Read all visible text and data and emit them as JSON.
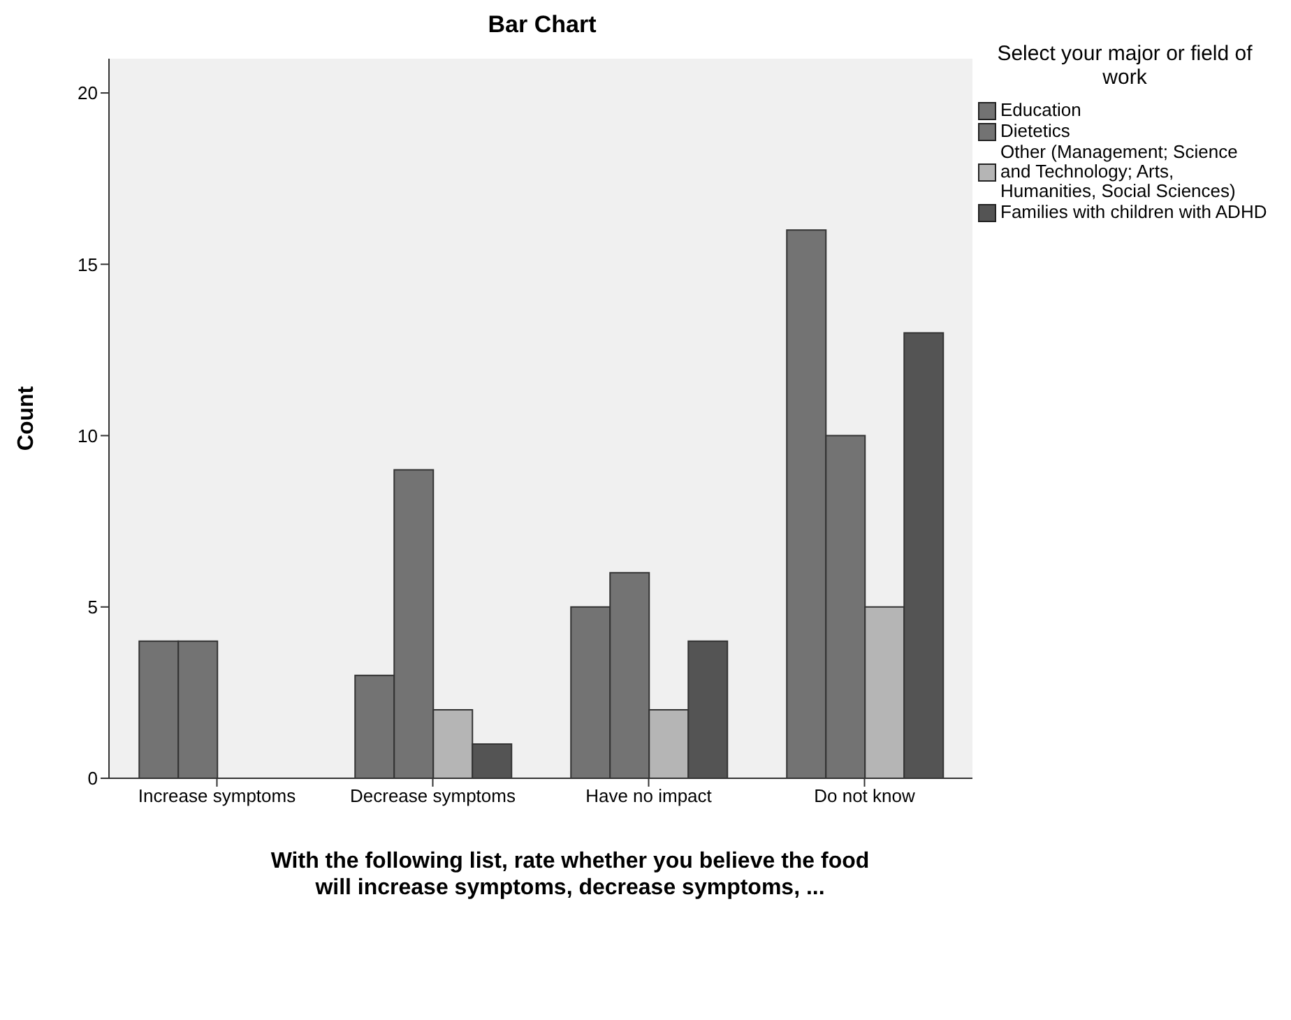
{
  "chart_data": {
    "type": "bar",
    "title": "Bar Chart",
    "xlabel": "With the following list, rate whether you believe the food will increase symptoms, decrease symptoms, ...",
    "ylabel": "Count",
    "legend_title": "Select your major or field of work",
    "categories": [
      "Increase symptoms",
      "Decrease symptoms",
      "Have no impact",
      "Do not know"
    ],
    "series": [
      {
        "name": "Education",
        "color": "#737373",
        "values": [
          4,
          3,
          5,
          16
        ]
      },
      {
        "name": "Dietetics",
        "color": "#737373",
        "values": [
          4,
          9,
          6,
          10
        ]
      },
      {
        "name": "Other (Management; Science and Technology; Arts, Humanities, Social Sciences)",
        "color": "#b5b5b5",
        "values": [
          0,
          2,
          2,
          5
        ]
      },
      {
        "name": "Families with children with ADHD",
        "color": "#545454",
        "values": [
          0,
          1,
          4,
          13
        ]
      }
    ],
    "ylim": [
      0,
      21
    ],
    "yticks": [
      0,
      5,
      10,
      15,
      20
    ],
    "grid": false,
    "legend": "right"
  }
}
